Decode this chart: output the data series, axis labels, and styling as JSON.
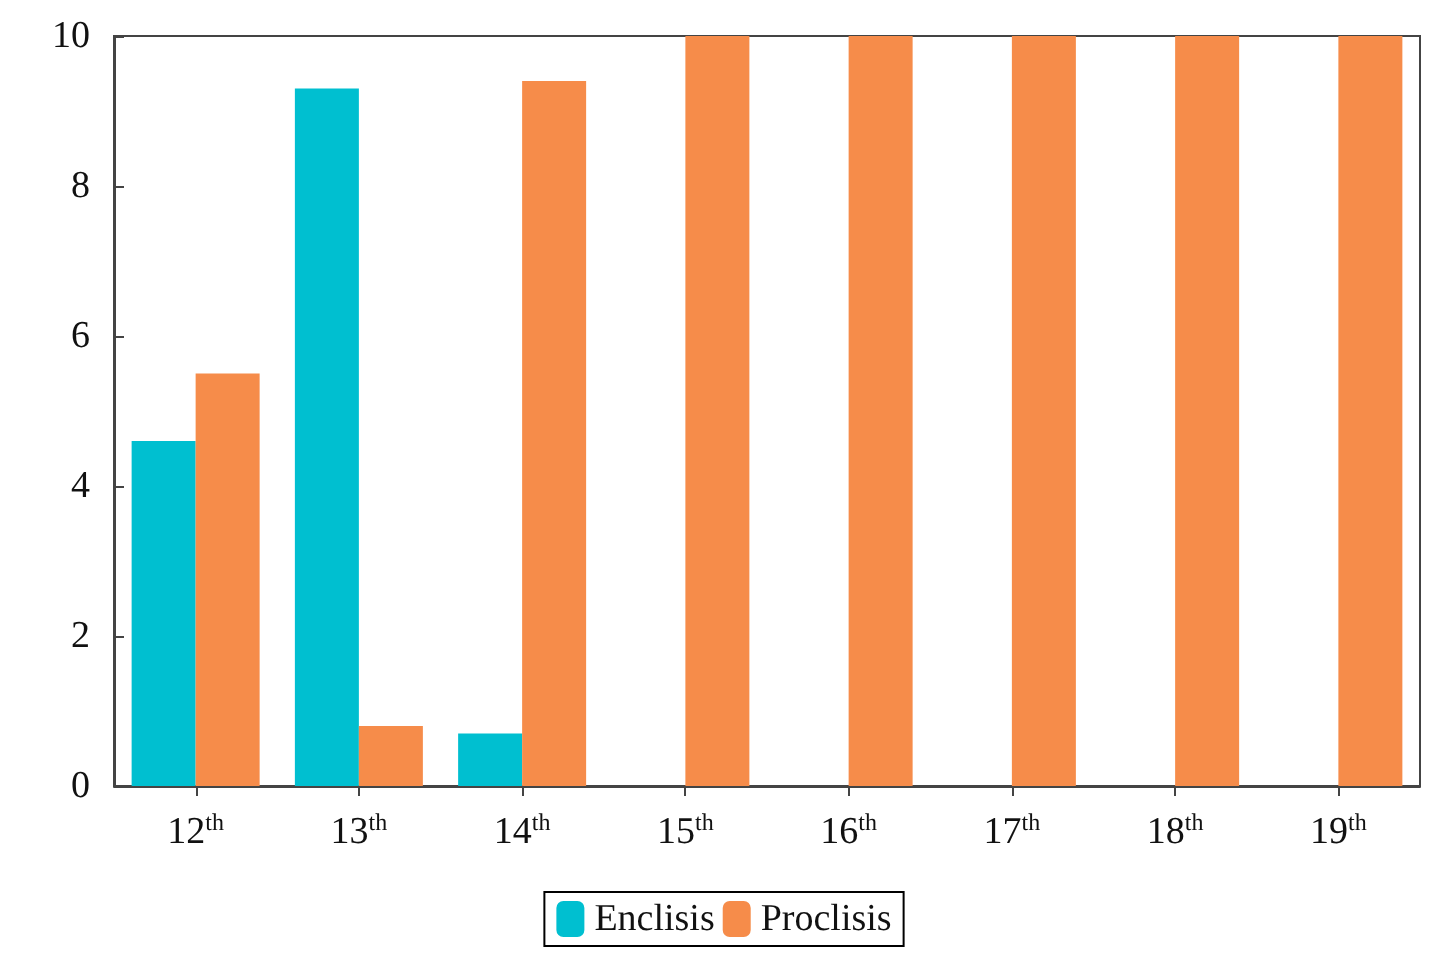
{
  "chart_data": {
    "type": "bar",
    "categories": [
      "12$^{th}$",
      "13$^{th}$",
      "14$^{th}$",
      "15$^{th}$",
      "16$^{th}$",
      "17$^{th}$",
      "18$^{th}$",
      "19$^{th}$"
    ],
    "series": [
      {
        "name": "Enclisis",
        "color": "#00bfd0",
        "values": [
          4.6,
          9.3,
          0.7,
          0,
          0,
          0,
          0,
          0
        ]
      },
      {
        "name": "Proclisis",
        "color": "#f68c4a",
        "values": [
          5.5,
          0.8,
          9.4,
          10,
          10,
          10,
          10,
          10
        ]
      }
    ],
    "ylim": [
      0,
      10
    ],
    "yticks": [
      0,
      2,
      4,
      6,
      8,
      10
    ],
    "grid": false,
    "legend": "bottom"
  }
}
